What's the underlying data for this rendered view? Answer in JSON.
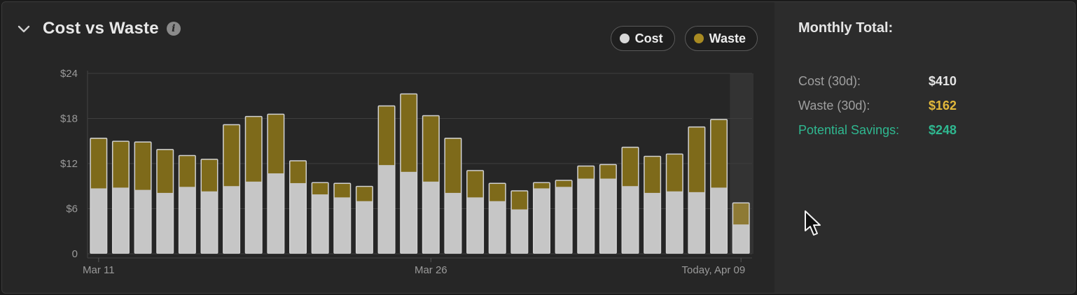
{
  "header": {
    "title": "Cost vs Waste",
    "info_icon": "info-icon",
    "collapse_icon": "chevron-down-icon"
  },
  "legend": [
    {
      "label": "Cost",
      "color": "#d8d8d8"
    },
    {
      "label": "Waste",
      "color": "#a88a22"
    }
  ],
  "colors": {
    "cost": "#c6c6c6",
    "waste": "#7e6a1a",
    "waste_highlight": "#8e7a35",
    "savings": "#2fb890",
    "waste_value": "#e2b93b"
  },
  "chart_data": {
    "type": "bar",
    "stacked": true,
    "x": [
      "Mar 11",
      "Mar 12",
      "Mar 13",
      "Mar 14",
      "Mar 15",
      "Mar 16",
      "Mar 17",
      "Mar 18",
      "Mar 19",
      "Mar 20",
      "Mar 21",
      "Mar 22",
      "Mar 23",
      "Mar 24",
      "Mar 25",
      "Mar 26",
      "Mar 27",
      "Mar 28",
      "Mar 29",
      "Mar 30",
      "Mar 31",
      "Apr 01",
      "Apr 02",
      "Apr 03",
      "Apr 04",
      "Apr 05",
      "Apr 06",
      "Apr 07",
      "Apr 08",
      "Apr 09"
    ],
    "series": [
      {
        "name": "Cost",
        "values": [
          8.7,
          8.8,
          8.5,
          8.1,
          8.9,
          8.3,
          9.0,
          9.6,
          10.7,
          9.4,
          7.9,
          7.5,
          7.0,
          11.8,
          10.9,
          9.6,
          8.1,
          7.5,
          7.0,
          5.9,
          8.7,
          8.9,
          10.0,
          10.0,
          9.0,
          8.1,
          8.3,
          8.2,
          8.8,
          3.9
        ]
      },
      {
        "name": "Waste",
        "values": [
          6.6,
          6.1,
          6.3,
          5.7,
          4.1,
          4.2,
          8.1,
          8.6,
          7.8,
          2.9,
          1.5,
          1.8,
          1.9,
          7.8,
          10.3,
          8.7,
          7.2,
          3.5,
          2.3,
          2.4,
          0.7,
          0.8,
          1.6,
          1.8,
          5.1,
          4.8,
          4.9,
          8.6,
          9.0,
          2.8
        ]
      }
    ],
    "y_ticks": [
      "0",
      "$6",
      "$12",
      "$18",
      "$24"
    ],
    "ylim": [
      0,
      24
    ],
    "x_tick_labels": [
      {
        "index": 0,
        "label": "Mar 11"
      },
      {
        "index": 15,
        "label": "Mar 26"
      },
      {
        "index": 29,
        "label": "Today, Apr 09"
      }
    ],
    "highlight_index": 29,
    "grid": true
  },
  "monthly": {
    "title": "Monthly Total:",
    "rows": [
      {
        "label": "Cost (30d):",
        "value": "$410"
      },
      {
        "label": "Waste (30d):",
        "value": "$162"
      },
      {
        "label": "Potential Savings:",
        "value": "$248"
      }
    ]
  }
}
